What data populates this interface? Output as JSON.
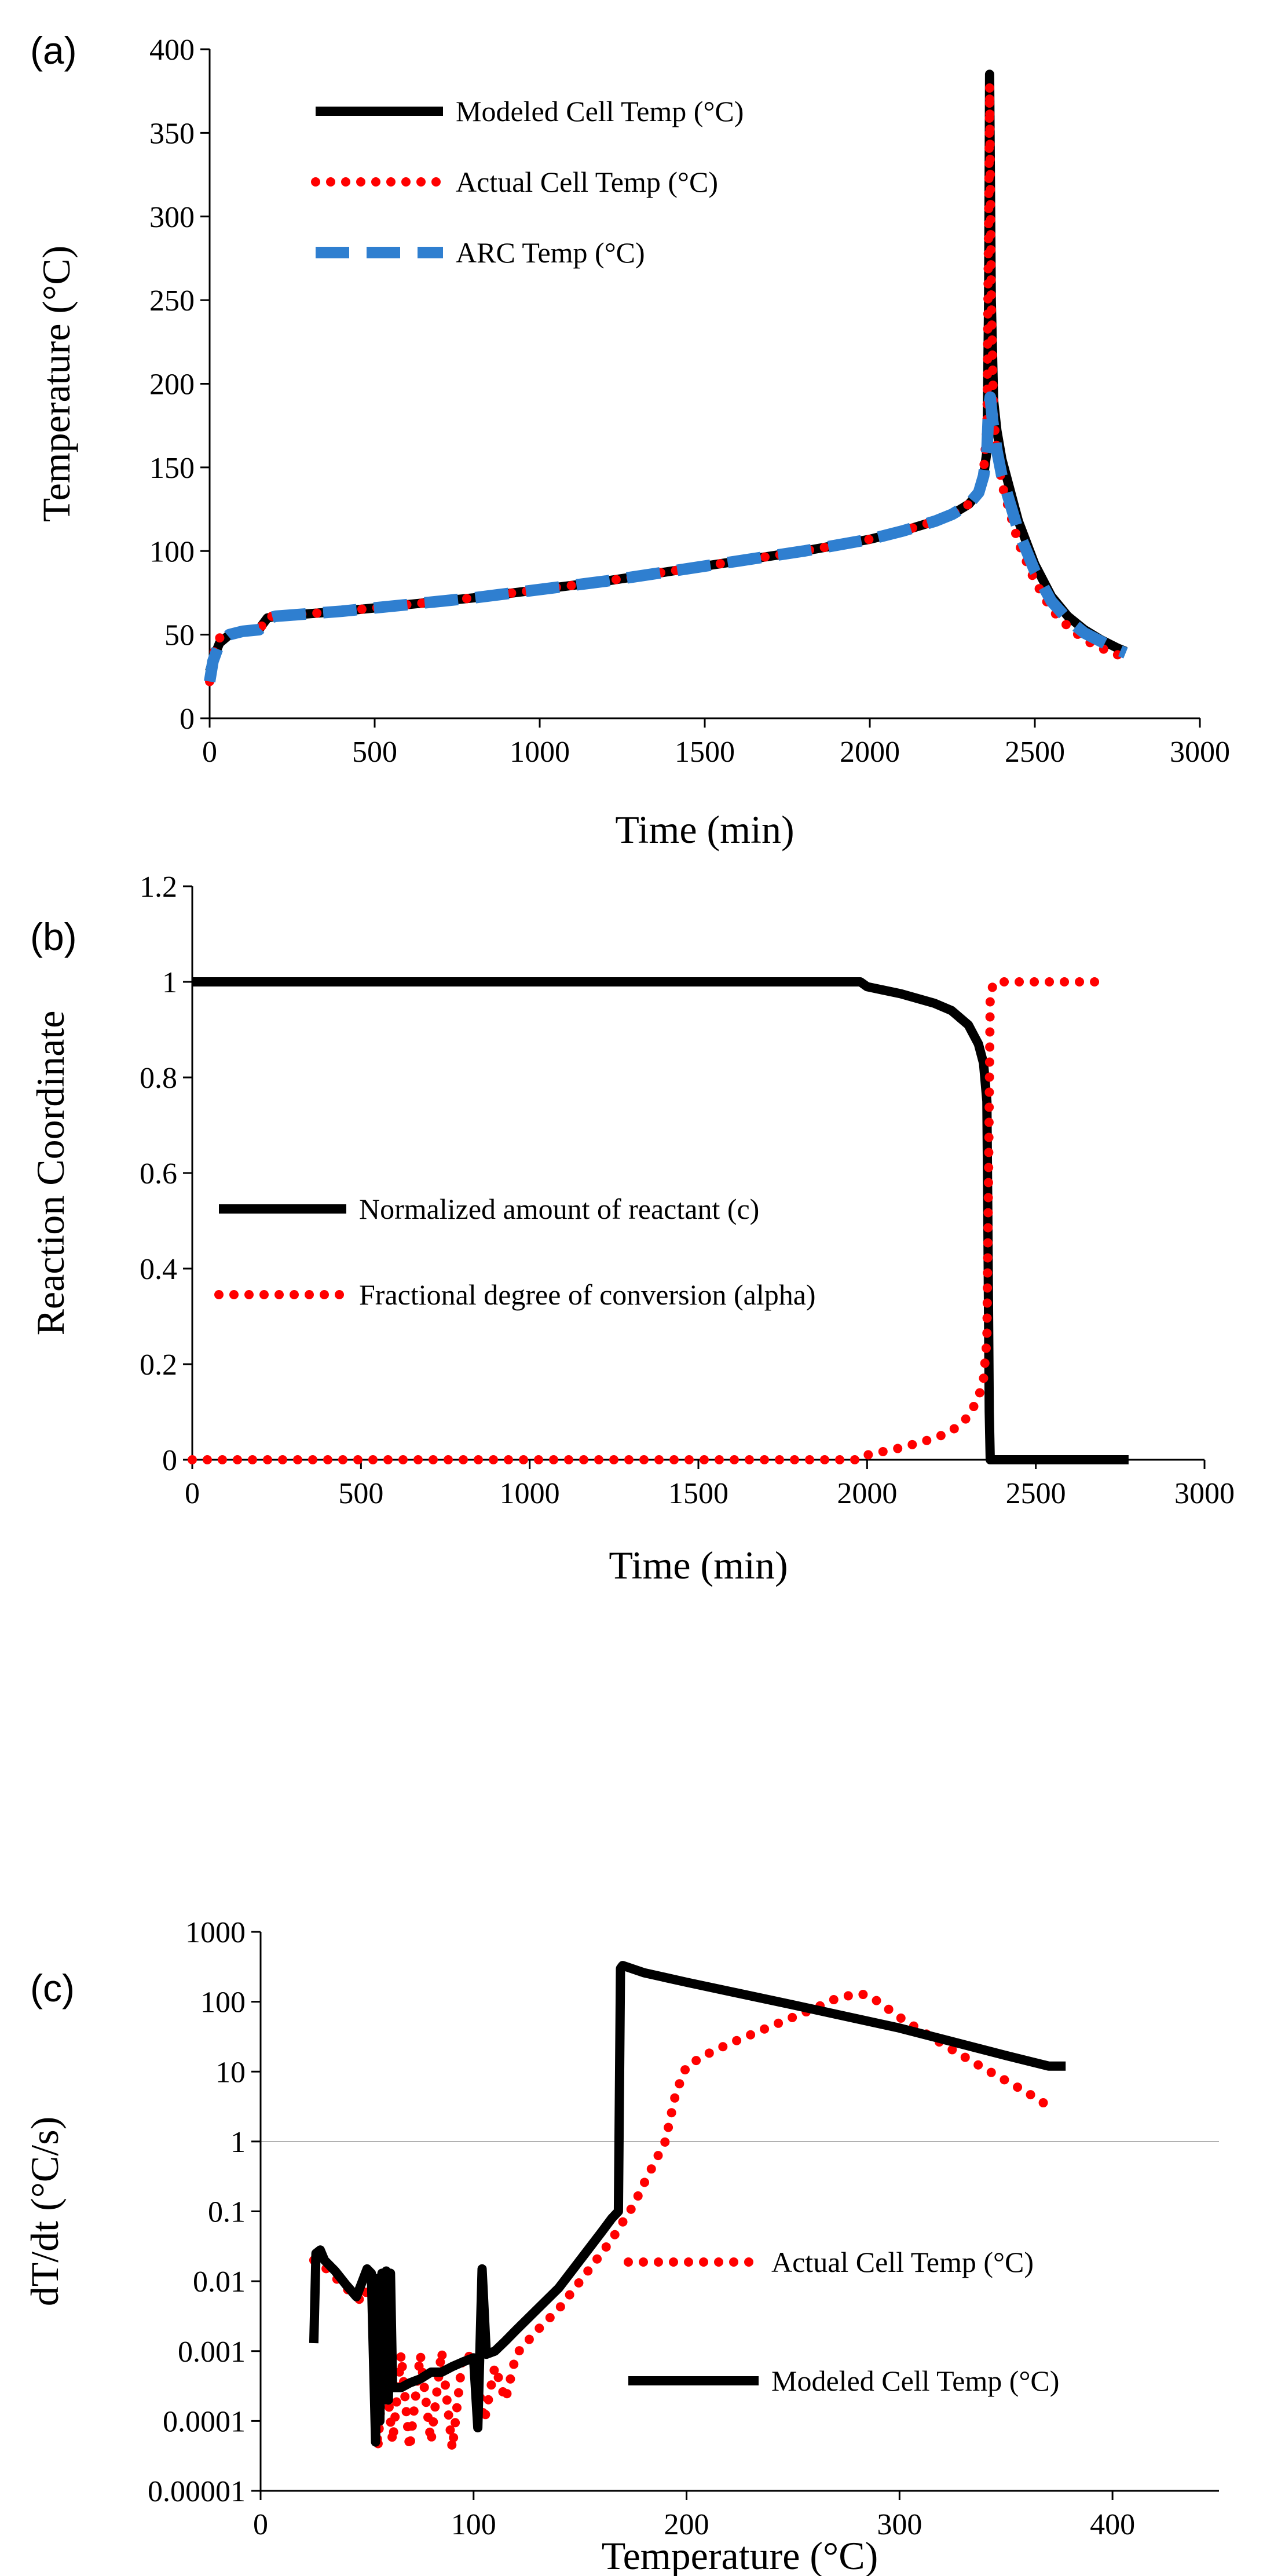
{
  "chart_data": [
    {
      "type": "line",
      "panel_label": "(a)",
      "title": "",
      "xlabel": "Time (min)",
      "ylabel": "Temperature (°C)",
      "xlim": [
        0,
        3000
      ],
      "ylim": [
        0,
        400
      ],
      "xticks": [
        "0",
        "500",
        "1000",
        "1500",
        "2000",
        "2500",
        "3000"
      ],
      "yticks": [
        "0",
        "50",
        "100",
        "150",
        "200",
        "250",
        "300",
        "350",
        "400"
      ],
      "grid": false,
      "legend_position": "top-left",
      "series": [
        {
          "name": "Modeled Cell Temp (°C)",
          "style": "solid",
          "color": "#000000",
          "x": [
            0,
            10,
            30,
            60,
            100,
            150,
            160,
            175,
            200,
            400,
            600,
            800,
            1000,
            1200,
            1400,
            1600,
            1800,
            2000,
            2100,
            2200,
            2250,
            2300,
            2330,
            2345,
            2355,
            2360,
            2363,
            2368,
            2375,
            2385,
            2400,
            2450,
            2500,
            2550,
            2600,
            2650,
            2700,
            2750,
            2775
          ],
          "y": [
            28,
            35,
            45,
            50,
            52,
            53,
            56,
            60,
            61,
            64,
            68,
            72,
            77,
            82,
            88,
            94,
            100,
            107,
            112,
            118,
            122,
            128,
            135,
            145,
            160,
            250,
            385,
            250,
            190,
            172,
            155,
            118,
            92,
            73,
            61,
            53,
            47,
            42,
            40
          ]
        },
        {
          "name": "Actual Cell Temp (°C)",
          "style": "dotted",
          "color": "#ff0000",
          "x": [
            0,
            10,
            30,
            60,
            100,
            150,
            165,
            180,
            200,
            400,
            600,
            800,
            1000,
            1200,
            1400,
            1600,
            1800,
            2000,
            2100,
            2200,
            2250,
            2300,
            2330,
            2345,
            2355,
            2360,
            2363,
            2368,
            2375,
            2385,
            2400,
            2450,
            2500,
            2550,
            2600,
            2650,
            2700,
            2750,
            2775
          ],
          "y": [
            22,
            38,
            48,
            51,
            52,
            53,
            57,
            61,
            61,
            64,
            68,
            72,
            77,
            82,
            88,
            94,
            100,
            107,
            112,
            118,
            122,
            128,
            135,
            148,
            175,
            300,
            378,
            250,
            180,
            160,
            140,
            105,
            82,
            65,
            55,
            47,
            42,
            38,
            37
          ]
        },
        {
          "name": "ARC Temp (°C)",
          "style": "dashed",
          "color": "#2f7fd0",
          "x": [
            0,
            10,
            30,
            60,
            100,
            150,
            165,
            180,
            200,
            400,
            600,
            800,
            1000,
            1200,
            1400,
            1600,
            1800,
            2000,
            2100,
            2200,
            2250,
            2300,
            2330,
            2345,
            2355,
            2360,
            2365,
            2372,
            2385,
            2400,
            2450,
            2500,
            2550,
            2600,
            2650,
            2700,
            2750,
            2775
          ],
          "y": [
            22,
            34,
            45,
            50,
            52,
            53,
            56,
            60,
            61,
            64,
            68,
            72,
            77,
            82,
            88,
            94,
            100,
            107,
            112,
            118,
            122,
            128,
            135,
            145,
            160,
            185,
            192,
            178,
            160,
            145,
            112,
            88,
            70,
            59,
            51,
            46,
            41,
            39
          ]
        }
      ]
    },
    {
      "type": "line",
      "panel_label": "(b)",
      "title": "",
      "xlabel": "Time (min)",
      "ylabel": "Reaction Coordinate",
      "xlim": [
        0,
        3000
      ],
      "ylim": [
        0,
        1.2
      ],
      "xticks": [
        "0",
        "500",
        "1000",
        "1500",
        "2000",
        "2500",
        "3000"
      ],
      "yticks": [
        "0",
        "0.2",
        "0.4",
        "0.6",
        "0.8",
        "1",
        "1.2"
      ],
      "grid": false,
      "legend_position": "middle-left",
      "series": [
        {
          "name": "Normalized amount of reactant (c)",
          "style": "solid",
          "color": "#000000",
          "x": [
            0,
            500,
            1000,
            1500,
            1980,
            2000,
            2100,
            2200,
            2250,
            2300,
            2330,
            2345,
            2355,
            2358,
            2362,
            2365,
            2400,
            2500,
            2600,
            2700,
            2775
          ],
          "y": [
            1,
            1,
            1,
            1,
            1,
            0.99,
            0.975,
            0.955,
            0.94,
            0.91,
            0.87,
            0.83,
            0.75,
            0.5,
            0.1,
            0,
            0,
            0,
            0,
            0,
            0
          ]
        },
        {
          "name": "Fractional degree of conversion (alpha)",
          "style": "dotted",
          "color": "#ff0000",
          "x": [
            0,
            500,
            1000,
            1500,
            1980,
            2000,
            2100,
            2200,
            2250,
            2300,
            2330,
            2345,
            2355,
            2360,
            2365,
            2380,
            2500,
            2600,
            2700
          ],
          "y": [
            0,
            0,
            0,
            0,
            0,
            0.01,
            0.025,
            0.045,
            0.06,
            0.09,
            0.13,
            0.17,
            0.25,
            0.6,
            0.98,
            1,
            1,
            1,
            1
          ]
        }
      ]
    },
    {
      "type": "line",
      "panel_label": "(c)",
      "title": "",
      "xlabel": "Temperature (°C)",
      "ylabel": "dT/dt (°C/s)",
      "xscale": "linear",
      "yscale": "log",
      "xlim": [
        0,
        450
      ],
      "ylim": [
        1e-05,
        1000
      ],
      "xticks": [
        "0",
        "100",
        "200",
        "300",
        "400"
      ],
      "yticks": [
        "0.00001",
        "0.0001",
        "0.001",
        "0.01",
        "0.1",
        "1",
        "10",
        "100",
        "1000"
      ],
      "grid": "horizontal line at 1",
      "legend_position": "bottom-right",
      "series": [
        {
          "name": "Actual Cell Temp (°C)",
          "style": "dotted",
          "color": "#ff0000",
          "x": [
            25,
            28,
            32,
            40,
            48,
            52,
            55,
            58,
            62,
            66,
            70,
            75,
            80,
            85,
            90,
            95,
            100,
            105,
            110,
            115,
            120,
            130,
            140,
            150,
            160,
            165,
            170,
            175,
            180,
            185,
            190,
            195,
            200,
            210,
            220,
            240,
            260,
            270,
            280,
            285,
            290,
            300,
            320,
            340,
            360,
            368
          ],
          "y": [
            0.02,
            0.018,
            0.014,
            0.008,
            0.005,
            0.012,
            4e-05,
            0.0008,
            5e-05,
            0.0009,
            4e-05,
            0.0009,
            5e-05,
            0.001,
            4e-05,
            0.0009,
            0.0008,
            0.0001,
            0.0006,
            0.0002,
            0.0009,
            0.002,
            0.004,
            0.01,
            0.025,
            0.04,
            0.07,
            0.12,
            0.25,
            0.5,
            1,
            5,
            12,
            18,
            25,
            45,
            80,
            110,
            130,
            125,
            100,
            60,
            25,
            11,
            5,
            3.5
          ]
        },
        {
          "name": "Modeled Cell Temp (°C)",
          "style": "solid",
          "color": "#000000",
          "x": [
            25,
            26,
            28,
            30,
            35,
            40,
            45,
            50,
            52,
            54,
            55,
            56,
            57,
            58,
            59,
            60,
            61,
            62,
            64,
            66,
            70,
            75,
            80,
            85,
            90,
            95,
            100,
            102,
            104,
            106,
            110,
            115,
            120,
            130,
            140,
            150,
            160,
            165,
            168,
            169,
            170,
            180,
            200,
            250,
            300,
            350,
            370,
            378
          ],
          "y": [
            0.0013,
            0.025,
            0.028,
            0.02,
            0.014,
            0.009,
            0.006,
            0.015,
            0.013,
            5e-05,
            0.011,
            0.0001,
            0.013,
            0.0002,
            0.014,
            0.0002,
            0.013,
            0.0003,
            0.0003,
            0.0003,
            0.00035,
            0.0004,
            0.0005,
            0.0005,
            0.0006,
            0.0007,
            0.0008,
            8e-05,
            0.015,
            0.0009,
            0.001,
            0.0014,
            0.002,
            0.004,
            0.008,
            0.02,
            0.05,
            0.08,
            0.1,
            300,
            330,
            260,
            190,
            90,
            42,
            17,
            12,
            12
          ]
        }
      ]
    }
  ]
}
